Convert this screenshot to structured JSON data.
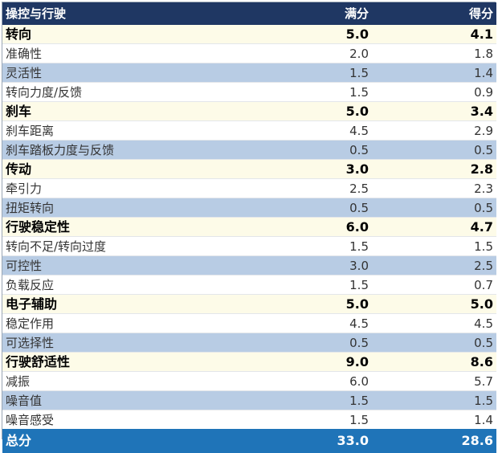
{
  "header": {
    "name": "操控与行驶",
    "full": "满分",
    "score": "得分"
  },
  "rows": [
    {
      "type": "category",
      "name": "转向",
      "full": "5.0",
      "score": "4.1"
    },
    {
      "type": "sub",
      "shade": "white",
      "name": "准确性",
      "full": "2.0",
      "score": "1.8"
    },
    {
      "type": "sub",
      "shade": "blue",
      "name": "灵活性",
      "full": "1.5",
      "score": "1.4"
    },
    {
      "type": "sub",
      "shade": "white",
      "name": "转向力度/反馈",
      "full": "1.5",
      "score": "0.9"
    },
    {
      "type": "category",
      "name": "刹车",
      "full": "5.0",
      "score": "3.4"
    },
    {
      "type": "sub",
      "shade": "white",
      "name": "刹车距离",
      "full": "4.5",
      "score": "2.9"
    },
    {
      "type": "sub",
      "shade": "blue",
      "name": "刹车踏板力度与反馈",
      "full": "0.5",
      "score": "0.5"
    },
    {
      "type": "category",
      "name": "传动",
      "full": "3.0",
      "score": "2.8"
    },
    {
      "type": "sub",
      "shade": "white",
      "name": "牵引力",
      "full": "2.5",
      "score": "2.3"
    },
    {
      "type": "sub",
      "shade": "blue",
      "name": "扭矩转向",
      "full": "0.5",
      "score": "0.5"
    },
    {
      "type": "category",
      "name": "行驶稳定性",
      "full": "6.0",
      "score": "4.7"
    },
    {
      "type": "sub",
      "shade": "white",
      "name": "转向不足/转向过度",
      "full": "1.5",
      "score": "1.5"
    },
    {
      "type": "sub",
      "shade": "blue",
      "name": "可控性",
      "full": "3.0",
      "score": "2.5"
    },
    {
      "type": "sub",
      "shade": "white",
      "name": "负载反应",
      "full": "1.5",
      "score": "0.7"
    },
    {
      "type": "category",
      "name": "电子辅助",
      "full": "5.0",
      "score": "5.0"
    },
    {
      "type": "sub",
      "shade": "white",
      "name": "稳定作用",
      "full": "4.5",
      "score": "4.5"
    },
    {
      "type": "sub",
      "shade": "blue",
      "name": "可选择性",
      "full": "0.5",
      "score": "0.5"
    },
    {
      "type": "category",
      "name": "行驶舒适性",
      "full": "9.0",
      "score": "8.6"
    },
    {
      "type": "sub",
      "shade": "white",
      "name": "减振",
      "full": "6.0",
      "score": "5.7"
    },
    {
      "type": "sub",
      "shade": "blue",
      "name": "噪音值",
      "full": "1.5",
      "score": "1.5"
    },
    {
      "type": "sub",
      "shade": "white",
      "name": "噪音感受",
      "full": "1.5",
      "score": "1.4"
    }
  ],
  "total": {
    "name": "总分",
    "full": "33.0",
    "score": "28.6"
  },
  "colors": {
    "header_bg": "#1f3763",
    "category_bg": "#fdfbe8",
    "sub_blue_bg": "#b8cce4",
    "total_bg": "#1f74b8"
  }
}
